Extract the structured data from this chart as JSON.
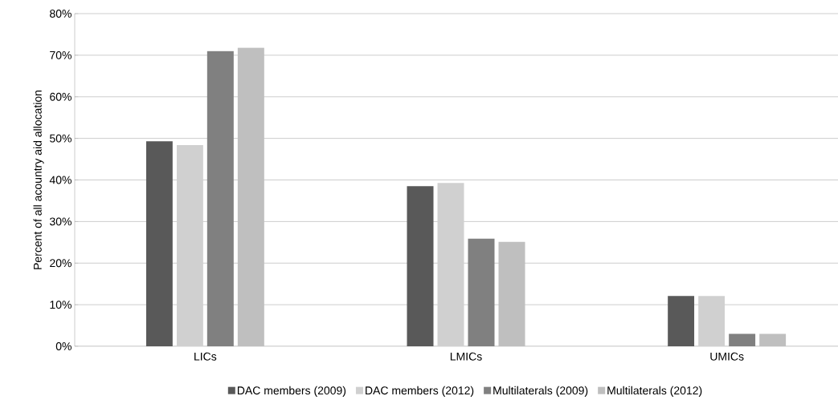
{
  "chart_data": {
    "type": "bar",
    "ylabel": "Percent of all acountry aid allocation",
    "categories": [
      "LICs",
      "LMICs",
      "UMICs"
    ],
    "series": [
      {
        "name": "DAC members (2009)",
        "color": "#595959",
        "values": [
          49.3,
          38.5,
          12.1
        ]
      },
      {
        "name": "DAC members (2012)",
        "color": "#d0d0d0",
        "values": [
          48.4,
          39.3,
          12.1
        ]
      },
      {
        "name": "Multilaterals (2009)",
        "color": "#808080",
        "values": [
          71.0,
          25.9,
          3.0
        ]
      },
      {
        "name": "Multilaterals (2012)",
        "color": "#bfbfbf",
        "values": [
          71.8,
          25.1,
          3.0
        ]
      }
    ],
    "ylim": [
      0,
      80
    ],
    "yticks": [
      {
        "value": 0,
        "label": "0%"
      },
      {
        "value": 10,
        "label": "10%"
      },
      {
        "value": 20,
        "label": "20%"
      },
      {
        "value": 30,
        "label": "30%"
      },
      {
        "value": 40,
        "label": "40%"
      },
      {
        "value": 50,
        "label": "50%"
      },
      {
        "value": 60,
        "label": "60%"
      },
      {
        "value": 70,
        "label": "70%"
      },
      {
        "value": 80,
        "label": "80%"
      }
    ],
    "grid": "y",
    "legend": "bottom"
  }
}
